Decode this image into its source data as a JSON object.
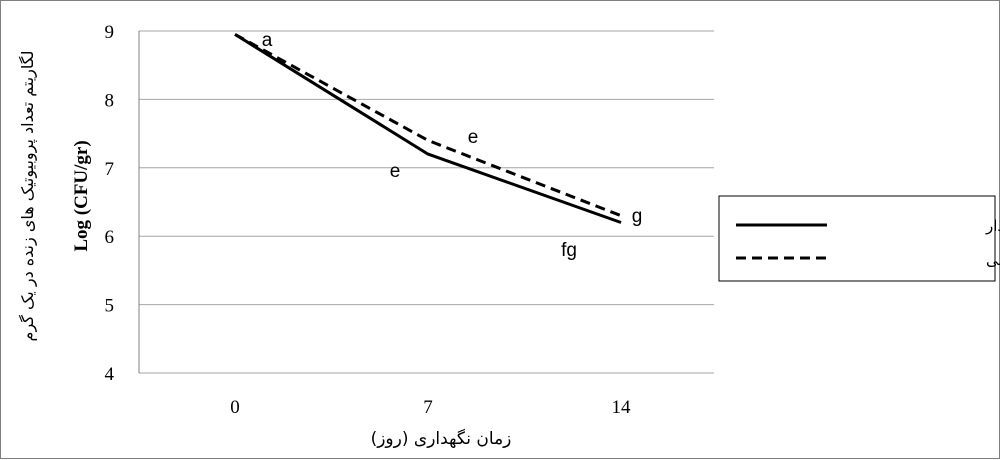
{
  "chart_data": {
    "type": "line",
    "x": [
      0,
      7,
      14
    ],
    "x_tick_labels": [
      "0",
      "7",
      "14"
    ],
    "ylim": [
      4,
      9
    ],
    "y_ticks": [
      4,
      5,
      6,
      7,
      8,
      9
    ],
    "grid": true,
    "xlabel": "زمان نگهداری (روز)",
    "ylabel": "لگاریتم تعداد پروبیوتیک های زنده در یک گرم",
    "ylabel_unit": "Log (CFU/gr)",
    "legend_position": "right",
    "series": [
      {
        "name": "بسته بندی پرشش دار",
        "values": [
          8.95,
          7.2,
          6.2
        ],
        "line_style": "solid",
        "color": "#000000",
        "point_labels": [
          "a",
          "e",
          "fg"
        ]
      },
      {
        "name": "بسته بندی معمولی",
        "values": [
          8.95,
          7.4,
          6.3
        ],
        "line_style": "dashed",
        "color": "#000000",
        "point_labels": [
          "a",
          "e",
          "g"
        ]
      }
    ]
  }
}
